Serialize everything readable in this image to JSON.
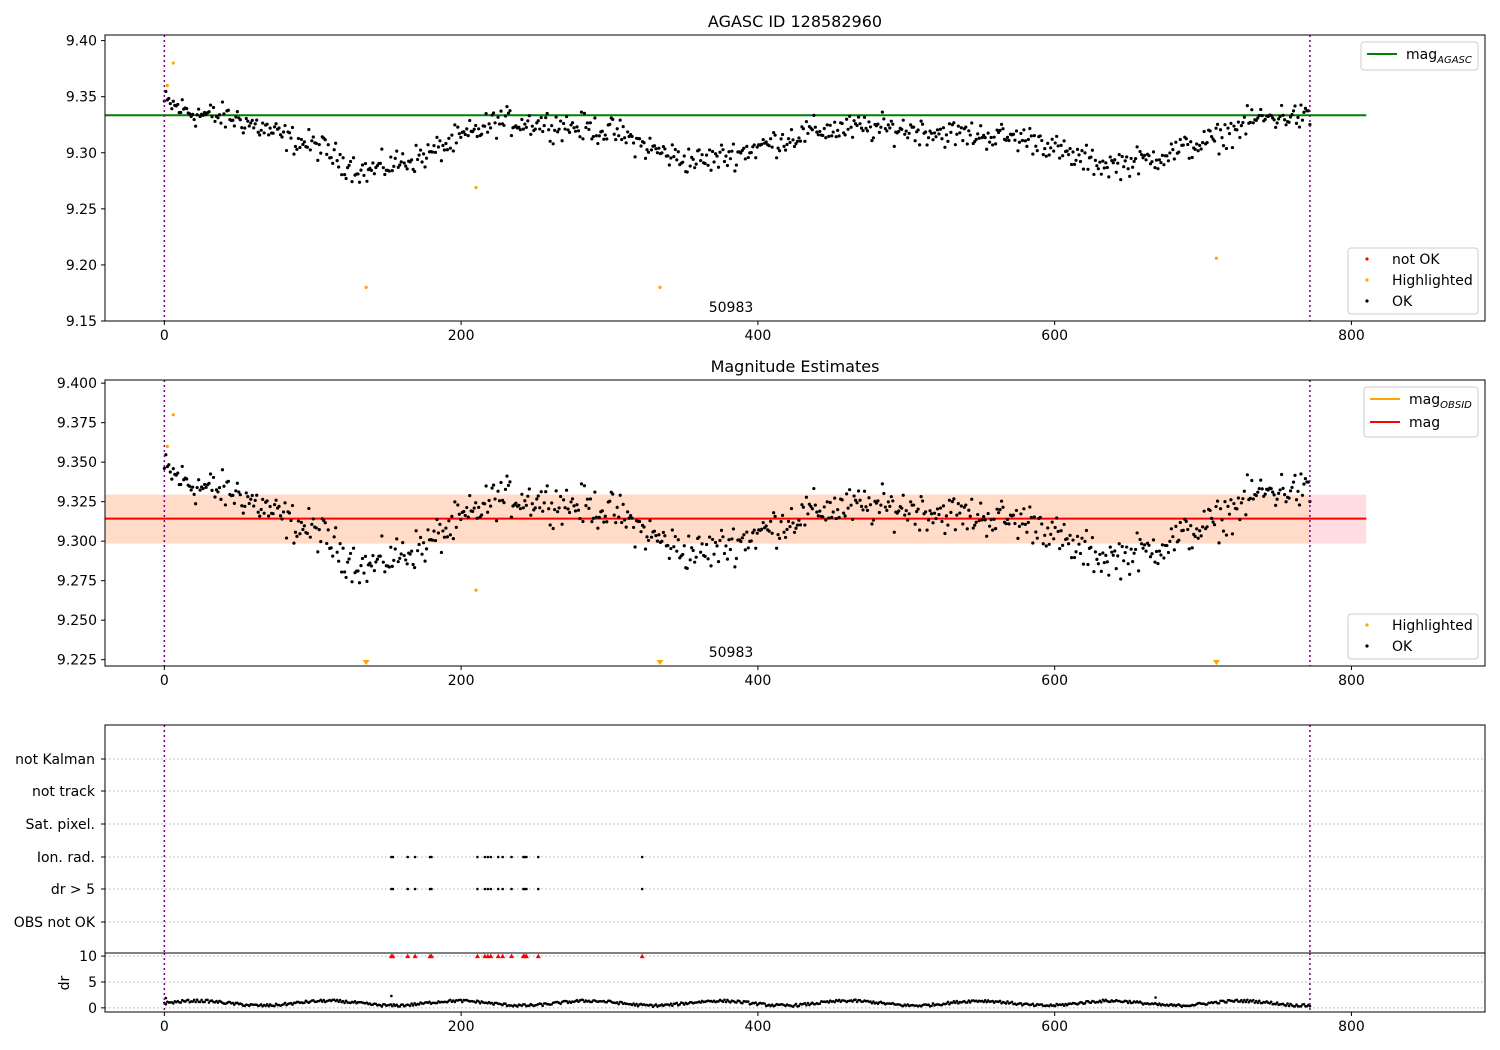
{
  "chart_data": [
    {
      "panel": "top",
      "type": "scatter",
      "title": "AGASC ID 128582960",
      "annotation": "50983",
      "xlim": [
        -40,
        890
      ],
      "ylim": [
        9.15,
        9.405
      ],
      "xticks": [
        0,
        200,
        400,
        600,
        800
      ],
      "xtick_labels": [
        "0",
        "200",
        "400",
        "600",
        "800"
      ],
      "yticks": [
        9.15,
        9.2,
        9.25,
        9.3,
        9.35,
        9.4
      ],
      "ytick_labels": [
        "9.15",
        "9.20",
        "9.25",
        "9.30",
        "9.35",
        "9.40"
      ],
      "vlines": [
        0,
        772
      ],
      "hline": {
        "y": 9.3335,
        "x_range": [
          -40,
          810
        ],
        "color": "#008000"
      },
      "legend_lines": [
        {
          "label": "mag",
          "sub": "AGASC",
          "color": "#008000"
        }
      ],
      "legend_points": [
        {
          "label": "not OK",
          "color": "#ff0000"
        },
        {
          "label": "Highlighted",
          "color": "#ffa500"
        },
        {
          "label": "OK",
          "color": "#000000"
        }
      ],
      "highlighted_points": [
        [
          2,
          9.36
        ],
        [
          6,
          9.38
        ],
        [
          136,
          9.18
        ],
        [
          210,
          9.269
        ],
        [
          334,
          9.18
        ],
        [
          709,
          9.206
        ]
      ],
      "ok_trend": [
        [
          0,
          9.345
        ],
        [
          20,
          9.335
        ],
        [
          50,
          9.33
        ],
        [
          85,
          9.312
        ],
        [
          105,
          9.305
        ],
        [
          120,
          9.292
        ],
        [
          135,
          9.283
        ],
        [
          160,
          9.292
        ],
        [
          175,
          9.297
        ],
        [
          195,
          9.31
        ],
        [
          225,
          9.328
        ],
        [
          255,
          9.326
        ],
        [
          285,
          9.322
        ],
        [
          305,
          9.318
        ],
        [
          325,
          9.305
        ],
        [
          350,
          9.294
        ],
        [
          365,
          9.293
        ],
        [
          390,
          9.301
        ],
        [
          415,
          9.311
        ],
        [
          440,
          9.32
        ],
        [
          470,
          9.322
        ],
        [
          500,
          9.321
        ],
        [
          530,
          9.317
        ],
        [
          560,
          9.315
        ],
        [
          590,
          9.311
        ],
        [
          610,
          9.297
        ],
        [
          635,
          9.289
        ],
        [
          660,
          9.293
        ],
        [
          685,
          9.303
        ],
        [
          710,
          9.313
        ],
        [
          735,
          9.33
        ],
        [
          760,
          9.333
        ],
        [
          772,
          9.33
        ]
      ],
      "ok_count": 770,
      "ok_x_range": [
        0,
        772
      ]
    },
    {
      "panel": "middle",
      "type": "scatter",
      "title": "Magnitude Estimates",
      "annotation": "50983",
      "xlim": [
        -40,
        890
      ],
      "ylim": [
        9.221,
        9.402
      ],
      "xticks": [
        0,
        200,
        400,
        600,
        800
      ],
      "xtick_labels": [
        "0",
        "200",
        "400",
        "600",
        "800"
      ],
      "yticks": [
        9.225,
        9.25,
        9.275,
        9.3,
        9.325,
        9.35,
        9.375,
        9.4
      ],
      "ytick_labels": [
        "9.225",
        "9.250",
        "9.275",
        "9.300",
        "9.325",
        "9.350",
        "9.375",
        "9.400"
      ],
      "vlines": [
        0,
        772
      ],
      "hline": {
        "y": 9.3143,
        "x_range": [
          -40,
          810
        ],
        "color": "#ff0000"
      },
      "band_outer": {
        "y": [
          9.2985,
          9.3295
        ],
        "color": "#ffdde3"
      },
      "band_inner": {
        "y": [
          9.2985,
          9.3295
        ],
        "x_range": [
          -40,
          772
        ],
        "color": "#ffdbc8"
      },
      "legend_lines": [
        {
          "label": "mag",
          "sub": "OBSID",
          "color": "#ffa500"
        },
        {
          "label": "mag",
          "sub": "",
          "color": "#ff0000"
        }
      ],
      "legend_points": [
        {
          "label": "Highlighted",
          "color": "#ffa500"
        },
        {
          "label": "OK",
          "color": "#000000"
        }
      ],
      "highlighted_points": [
        [
          2,
          9.36
        ],
        [
          6,
          9.38
        ],
        [
          210,
          9.269
        ]
      ],
      "offscale_markers": [
        136,
        334,
        709
      ],
      "ok_count": 770,
      "ok_x_range": [
        0,
        772
      ]
    },
    {
      "panel": "flags",
      "type": "scatter",
      "xlim": [
        -40,
        890
      ],
      "vlines": [
        0,
        772
      ],
      "categories": [
        "not Kalman",
        "not track",
        "Sat. pixel.",
        "Ion. rad.",
        "dr > 5",
        "OBS not OK"
      ],
      "flag_x": {
        "Ion. rad.": [
          153,
          154,
          164,
          169,
          179,
          180,
          211,
          216,
          218,
          220,
          225,
          228,
          234,
          242,
          243,
          244,
          252,
          322
        ],
        "dr > 5": [
          153,
          154,
          164,
          169,
          179,
          180,
          211,
          216,
          218,
          220,
          225,
          228,
          234,
          242,
          243,
          244,
          252,
          322
        ]
      }
    },
    {
      "panel": "dr",
      "type": "scatter",
      "ylabel": "dr",
      "xlim": [
        -40,
        890
      ],
      "ylim": [
        -0.8,
        10.6
      ],
      "xticks": [
        0,
        200,
        400,
        600,
        800
      ],
      "xtick_labels": [
        "0",
        "200",
        "400",
        "600",
        "800"
      ],
      "yticks": [
        0,
        5,
        10
      ],
      "ytick_labels": [
        "0",
        "5",
        "10"
      ],
      "vlines": [
        0,
        772
      ],
      "clipped_x": [
        153,
        154,
        164,
        169,
        179,
        180,
        211,
        216,
        218,
        220,
        225,
        228,
        234,
        242,
        243,
        244,
        252,
        322
      ],
      "outliers": [
        [
          153,
          2.3
        ],
        [
          668,
          2.0
        ],
        [
          1,
          1.9
        ]
      ],
      "dr_typical": [
        0.2,
        1.6
      ]
    }
  ]
}
